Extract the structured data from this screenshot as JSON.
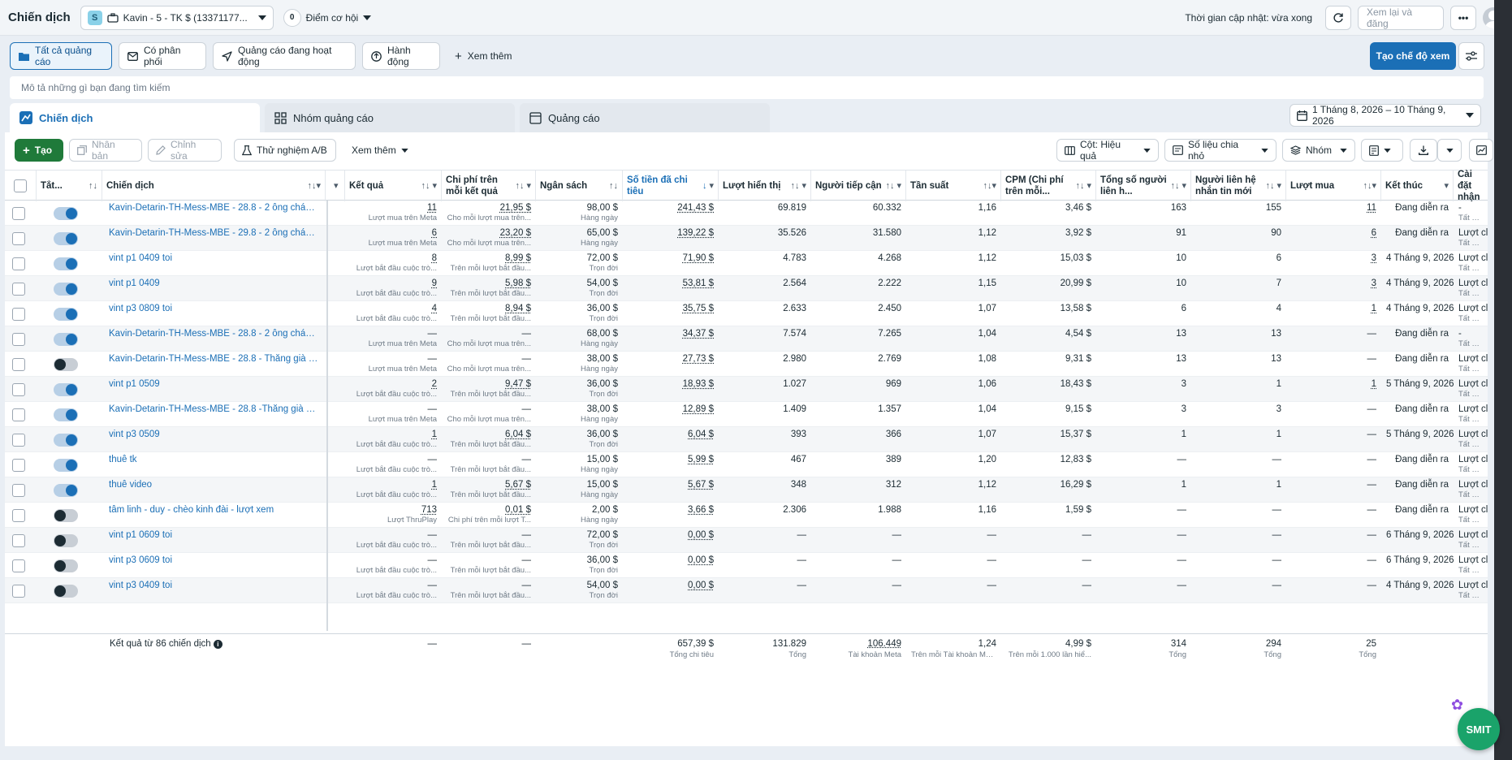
{
  "topbar": {
    "title": "Chiến dịch",
    "account_badge": "S",
    "account_name": "Kavin - 5 - TK $ (13371177...",
    "opportunity_count": "0",
    "opportunity_label": "Điểm cơ hội",
    "updated_text": "Thời gian cập nhật: vừa xong",
    "review_publish": "Xem lại và đăng"
  },
  "filters": {
    "all_ads": "Tất cả quảng cáo",
    "delivering": "Có phân phối",
    "active_ads": "Quảng cáo đang hoạt động",
    "actions": "Hành động",
    "see_more": "Xem thêm",
    "create_view": "Tạo chế độ xem"
  },
  "search": {
    "placeholder": "Mô tả những gì bạn đang tìm kiếm"
  },
  "tabs": {
    "campaigns": "Chiến dịch",
    "adsets": "Nhóm quảng cáo",
    "ads": "Quảng cáo"
  },
  "date_range": "1 Tháng 8, 2026 – 10 Tháng 9, 2026",
  "toolbar": {
    "create": "Tạo",
    "duplicate": "Nhân bản",
    "edit": "Chỉnh sửa",
    "ab_test": "Thử nghiệm A/B",
    "more": "Xem thêm",
    "columns": "Cột: Hiệu quả",
    "breakdown": "Số liệu chia nhỏ",
    "group": "Nhóm"
  },
  "columns": {
    "status": "Tắt...",
    "campaign": "Chiến dịch",
    "results": "Kết quả",
    "cost_per_result": "Chi phí trên mỗi kết quả",
    "budget": "Ngân sách",
    "amount_spent": "Số tiền đã chi tiêu",
    "impressions": "Lượt hiển thị",
    "reach": "Người tiếp cận",
    "frequency": "Tần suất",
    "cpm": "CPM (Chi phí trên mỗi...",
    "total_contacts": "Tổng số người liên h...",
    "new_contacts": "Người liên hệ nhắn tin mới",
    "purchases": "Lượt mua",
    "end": "Kết thúc",
    "attribution": "Cài đặt nhận"
  },
  "rows": [
    {
      "on": true,
      "name": "Kavin-Detarin-TH-Mess-MBE - 28.8 - 2 ông cháu ...",
      "results": "11",
      "results_sub": "Lượt mua trên Meta",
      "cpr": "21,95 $",
      "cpr_sub": "Cho mỗi lượt mua trên...",
      "budget": "98,00 $",
      "budget_sub": "Hàng ngày",
      "spent": "241,43 $",
      "impr": "69.819",
      "reach": "60.332",
      "freq": "1,16",
      "cpm": "3,46 $",
      "total_contacts": "163",
      "new_contacts": "155",
      "purchases": "11",
      "end": "Đang diễn ra",
      "attr": "-",
      "attr_sub": "Tất cả lư"
    },
    {
      "on": true,
      "name": "Kavin-Detarin-TH-Mess-MBE - 29.8 - 2 ông cháu ...",
      "results": "6",
      "results_sub": "Lượt mua trên Meta",
      "cpr": "23,20 $",
      "cpr_sub": "Cho mỗi lượt mua trên...",
      "budget": "65,00 $",
      "budget_sub": "Hàng ngày",
      "spent": "139,22 $",
      "impr": "35.526",
      "reach": "31.580",
      "freq": "1,12",
      "cpm": "3,92 $",
      "total_contacts": "91",
      "new_contacts": "90",
      "purchases": "6",
      "end": "Đang diễn ra",
      "attr": "Lượt clic",
      "attr_sub": "Tất cả lư"
    },
    {
      "on": true,
      "name": "vint p1 0409 toi",
      "results": "8",
      "results_sub": "Lượt bắt đầu cuộc trò...",
      "cpr": "8,99 $",
      "cpr_sub": "Trên mỗi lượt bắt đầu...",
      "budget": "72,00 $",
      "budget_sub": "Trọn đời",
      "spent": "71,90 $",
      "impr": "4.783",
      "reach": "4.268",
      "freq": "1,12",
      "cpm": "15,03 $",
      "total_contacts": "10",
      "new_contacts": "6",
      "purchases": "3",
      "end": "4 Tháng 9, 2026",
      "attr": "Lượt clic",
      "attr_sub": "Tất cả lư"
    },
    {
      "on": true,
      "name": "vint p1 0409",
      "results": "9",
      "results_sub": "Lượt bắt đầu cuộc trò...",
      "cpr": "5,98 $",
      "cpr_sub": "Trên mỗi lượt bắt đầu...",
      "budget": "54,00 $",
      "budget_sub": "Trọn đời",
      "spent": "53,81 $",
      "impr": "2.564",
      "reach": "2.222",
      "freq": "1,15",
      "cpm": "20,99 $",
      "total_contacts": "10",
      "new_contacts": "7",
      "purchases": "3",
      "end": "4 Tháng 9, 2026",
      "attr": "Lượt clic",
      "attr_sub": "Tất cả lư"
    },
    {
      "on": true,
      "name": "vint p3 0809 toi",
      "results": "4",
      "results_sub": "Lượt bắt đầu cuộc trò...",
      "cpr": "8,94 $",
      "cpr_sub": "Trên mỗi lượt bắt đầu...",
      "budget": "36,00 $",
      "budget_sub": "Trọn đời",
      "spent": "35,75 $",
      "impr": "2.633",
      "reach": "2.450",
      "freq": "1,07",
      "cpm": "13,58 $",
      "total_contacts": "6",
      "new_contacts": "4",
      "purchases": "1",
      "end": "4 Tháng 9, 2026",
      "attr": "Lượt clic",
      "attr_sub": "Tất cả lư"
    },
    {
      "on": true,
      "name": "Kavin-Detarin-TH-Mess-MBE - 28.8 - 2 ông cháu ...",
      "results": "—",
      "results_sub": "Lượt mua trên Meta",
      "cpr": "—",
      "cpr_sub": "Cho mỗi lượt mua trên...",
      "budget": "68,00 $",
      "budget_sub": "Hàng ngày",
      "spent": "34,37 $",
      "impr": "7.574",
      "reach": "7.265",
      "freq": "1,04",
      "cpm": "4,54 $",
      "total_contacts": "13",
      "new_contacts": "13",
      "purchases": "—",
      "end": "Đang diễn ra",
      "attr": "-",
      "attr_sub": "Tất cả lư"
    },
    {
      "on": false,
      "name": "Kavin-Detarin-TH-Mess-MBE - 28.8 - Thăng già -...",
      "results": "—",
      "results_sub": "Lượt mua trên Meta",
      "cpr": "—",
      "cpr_sub": "Cho mỗi lượt mua trên...",
      "budget": "38,00 $",
      "budget_sub": "Hàng ngày",
      "spent": "27,73 $",
      "impr": "2.980",
      "reach": "2.769",
      "freq": "1,08",
      "cpm": "9,31 $",
      "total_contacts": "13",
      "new_contacts": "13",
      "purchases": "—",
      "end": "Đang diễn ra",
      "attr": "Lượt clic",
      "attr_sub": "Tất cả lư"
    },
    {
      "on": true,
      "name": "vint p1 0509",
      "results": "2",
      "results_sub": "Lượt bắt đầu cuộc trò...",
      "cpr": "9,47 $",
      "cpr_sub": "Trên mỗi lượt bắt đầu...",
      "budget": "36,00 $",
      "budget_sub": "Trọn đời",
      "spent": "18,93 $",
      "impr": "1.027",
      "reach": "969",
      "freq": "1,06",
      "cpm": "18,43 $",
      "total_contacts": "3",
      "new_contacts": "1",
      "purchases": "1",
      "end": "5 Tháng 9, 2026",
      "attr": "Lượt clic",
      "attr_sub": "Tất cả lư"
    },
    {
      "on": true,
      "name": "Kavin-Detarin-TH-Mess-MBE - 28.8 -Thăng già - ...",
      "results": "—",
      "results_sub": "Lượt mua trên Meta",
      "cpr": "—",
      "cpr_sub": "Cho mỗi lượt mua trên...",
      "budget": "38,00 $",
      "budget_sub": "Hàng ngày",
      "spent": "12,89 $",
      "impr": "1.409",
      "reach": "1.357",
      "freq": "1,04",
      "cpm": "9,15 $",
      "total_contacts": "3",
      "new_contacts": "3",
      "purchases": "—",
      "end": "Đang diễn ra",
      "attr": "Lượt clic",
      "attr_sub": "Tất cả lư"
    },
    {
      "on": true,
      "name": "vint p3 0509",
      "results": "1",
      "results_sub": "Lượt bắt đầu cuộc trò...",
      "cpr": "6,04 $",
      "cpr_sub": "Trên mỗi lượt bắt đầu...",
      "budget": "36,00 $",
      "budget_sub": "Trọn đời",
      "spent": "6,04 $",
      "impr": "393",
      "reach": "366",
      "freq": "1,07",
      "cpm": "15,37 $",
      "total_contacts": "1",
      "new_contacts": "1",
      "purchases": "—",
      "end": "5 Tháng 9, 2026",
      "attr": "Lượt clic",
      "attr_sub": "Tất cả lư"
    },
    {
      "on": true,
      "name": "thuê tk",
      "results": "—",
      "results_sub": "Lượt bắt đầu cuộc trò...",
      "cpr": "—",
      "cpr_sub": "Trên mỗi lượt bắt đầu...",
      "budget": "15,00 $",
      "budget_sub": "Hàng ngày",
      "spent": "5,99 $",
      "impr": "467",
      "reach": "389",
      "freq": "1,20",
      "cpm": "12,83 $",
      "total_contacts": "—",
      "new_contacts": "—",
      "purchases": "—",
      "end": "Đang diễn ra",
      "attr": "Lượt clic",
      "attr_sub": "Tất cả lư"
    },
    {
      "on": true,
      "name": "thuê video",
      "results": "1",
      "results_sub": "Lượt bắt đầu cuộc trò...",
      "cpr": "5,67 $",
      "cpr_sub": "Trên mỗi lượt bắt đầu...",
      "budget": "15,00 $",
      "budget_sub": "Hàng ngày",
      "spent": "5,67 $",
      "impr": "348",
      "reach": "312",
      "freq": "1,12",
      "cpm": "16,29 $",
      "total_contacts": "1",
      "new_contacts": "1",
      "purchases": "—",
      "end": "Đang diễn ra",
      "attr": "Lượt clic",
      "attr_sub": "Tất cả lư"
    },
    {
      "on": false,
      "name": "tâm linh - duy - chèo kinh đài - lượt xem",
      "results": "713",
      "results_sub": "Lượt ThruPlay",
      "cpr": "0,01 $",
      "cpr_sub": "Chi phí trên mỗi lượt T...",
      "budget": "2,00 $",
      "budget_sub": "Hàng ngày",
      "spent": "3,66 $",
      "impr": "2.306",
      "reach": "1.988",
      "freq": "1,16",
      "cpm": "1,59 $",
      "total_contacts": "—",
      "new_contacts": "—",
      "purchases": "—",
      "end": "Đang diễn ra",
      "attr": "Lượt clic",
      "attr_sub": "Tất cả lư"
    },
    {
      "on": false,
      "name": "vint p1 0609 toi",
      "results": "—",
      "results_sub": "Lượt bắt đầu cuộc trò...",
      "cpr": "—",
      "cpr_sub": "Trên mỗi lượt bắt đầu...",
      "budget": "72,00 $",
      "budget_sub": "Trọn đời",
      "spent": "0,00 $",
      "impr": "—",
      "reach": "—",
      "freq": "—",
      "cpm": "—",
      "total_contacts": "—",
      "new_contacts": "—",
      "purchases": "—",
      "end": "6 Tháng 9, 2026",
      "attr": "Lượt clic",
      "attr_sub": "Tất cả lư"
    },
    {
      "on": false,
      "name": "vint p3 0609 toi",
      "results": "—",
      "results_sub": "Lượt bắt đầu cuộc trò...",
      "cpr": "—",
      "cpr_sub": "Trên mỗi lượt bắt đầu...",
      "budget": "36,00 $",
      "budget_sub": "Trọn đời",
      "spent": "0,00 $",
      "impr": "—",
      "reach": "—",
      "freq": "—",
      "cpm": "—",
      "total_contacts": "—",
      "new_contacts": "—",
      "purchases": "—",
      "end": "6 Tháng 9, 2026",
      "attr": "Lượt clic",
      "attr_sub": "Tất cả lư"
    },
    {
      "on": false,
      "name": "vint p3 0409 toi",
      "results": "—",
      "results_sub": "Lượt bắt đầu cuộc trò...",
      "cpr": "—",
      "cpr_sub": "Trên mỗi lượt bắt đầu...",
      "budget": "54,00 $",
      "budget_sub": "Trọn đời",
      "spent": "0,00 $",
      "impr": "—",
      "reach": "—",
      "freq": "—",
      "cpm": "—",
      "total_contacts": "—",
      "new_contacts": "—",
      "purchases": "—",
      "end": "4 Tháng 9, 2026",
      "attr": "Lượt clic",
      "attr_sub": "Tất cả lư"
    }
  ],
  "totals": {
    "label": "Kết quả từ 86 chiến dịch",
    "results": "—",
    "cpr": "—",
    "spent": "657,39 $",
    "spent_sub": "Tổng chi tiêu",
    "impr": "131.829",
    "impr_sub": "Tổng",
    "reach": "106.449",
    "reach_sub": "Tài khoản Meta",
    "freq": "1,24",
    "freq_sub": "Trên mỗi Tài khoản Me...",
    "cpm": "4,99 $",
    "cpm_sub": "Trên mỗi 1.000 lần hiể...",
    "total_contacts": "314",
    "total_contacts_sub": "Tổng",
    "new_contacts": "294",
    "new_contacts_sub": "Tổng",
    "purchases": "25",
    "purchases_sub": "Tổng"
  },
  "chat_widget": "SMIT"
}
